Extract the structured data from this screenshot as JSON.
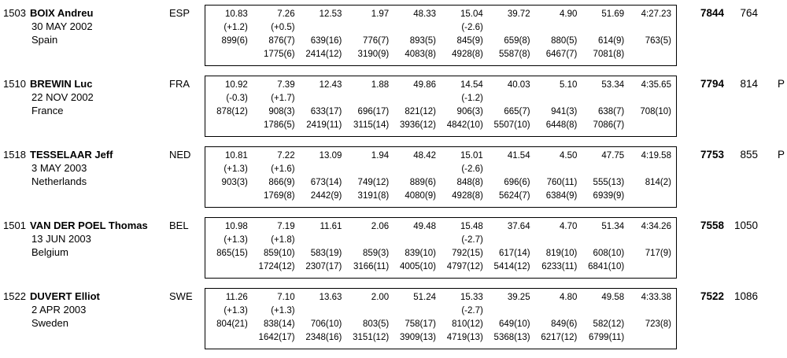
{
  "colors": {
    "background": "#ffffff",
    "text": "#000000",
    "box_border": "#000000"
  },
  "athletes": [
    {
      "bib": "1503",
      "name": "BOIX Andreu",
      "birthdate": "30 MAY 2002",
      "country": "Spain",
      "noc": "ESP",
      "marks": [
        "10.83",
        "7.26",
        "12.53",
        "1.97",
        "48.33",
        "15.04",
        "39.72",
        "4.90",
        "51.69",
        "4:27.23"
      ],
      "winds": [
        "(+1.2)",
        "(+0.5)",
        "",
        "",
        "",
        "(-2.6)",
        "",
        "",
        "",
        ""
      ],
      "points": [
        "899(6)",
        "876(7)",
        "639(16)",
        "776(7)",
        "893(5)",
        "845(9)",
        "659(8)",
        "880(5)",
        "614(9)",
        "763(5)"
      ],
      "cumulative": [
        "",
        "1775(6)",
        "2414(12)",
        "3190(9)",
        "4083(8)",
        "4928(8)",
        "5587(8)",
        "6467(7)",
        "7081(8)",
        ""
      ],
      "total": "7844",
      "secondary": "764",
      "flag": ""
    },
    {
      "bib": "1510",
      "name": "BREWIN Luc",
      "birthdate": "22 NOV 2002",
      "country": "France",
      "noc": "FRA",
      "marks": [
        "10.92",
        "7.39",
        "12.43",
        "1.88",
        "49.86",
        "14.54",
        "40.03",
        "5.10",
        "53.34",
        "4:35.65"
      ],
      "winds": [
        "(-0.3)",
        "(+1.7)",
        "",
        "",
        "",
        "(-1.2)",
        "",
        "",
        "",
        ""
      ],
      "points": [
        "878(12)",
        "908(3)",
        "633(17)",
        "696(17)",
        "821(12)",
        "906(3)",
        "665(7)",
        "941(3)",
        "638(7)",
        "708(10)"
      ],
      "cumulative": [
        "",
        "1786(5)",
        "2419(11)",
        "3115(14)",
        "3936(12)",
        "4842(10)",
        "5507(10)",
        "6448(8)",
        "7086(7)",
        ""
      ],
      "total": "7794",
      "secondary": "814",
      "flag": "P"
    },
    {
      "bib": "1518",
      "name": "TESSELAAR Jeff",
      "birthdate": "3 MAY 2003",
      "country": "Netherlands",
      "noc": "NED",
      "marks": [
        "10.81",
        "7.22",
        "13.09",
        "1.94",
        "48.42",
        "15.01",
        "41.54",
        "4.50",
        "47.75",
        "4:19.58"
      ],
      "winds": [
        "(+1.3)",
        "(+1.6)",
        "",
        "",
        "",
        "(-2.6)",
        "",
        "",
        "",
        ""
      ],
      "points": [
        "903(3)",
        "866(9)",
        "673(14)",
        "749(12)",
        "889(6)",
        "848(8)",
        "696(6)",
        "760(11)",
        "555(13)",
        "814(2)"
      ],
      "cumulative": [
        "",
        "1769(8)",
        "2442(9)",
        "3191(8)",
        "4080(9)",
        "4928(8)",
        "5624(7)",
        "6384(9)",
        "6939(9)",
        ""
      ],
      "total": "7753",
      "secondary": "855",
      "flag": "P"
    },
    {
      "bib": "1501",
      "name": "VAN DER POEL Thomas",
      "birthdate": "13 JUN 2003",
      "country": "Belgium",
      "noc": "BEL",
      "marks": [
        "10.98",
        "7.19",
        "11.61",
        "2.06",
        "49.48",
        "15.48",
        "37.64",
        "4.70",
        "51.34",
        "4:34.26"
      ],
      "winds": [
        "(+1.3)",
        "(+1.8)",
        "",
        "",
        "",
        "(-2.7)",
        "",
        "",
        "",
        ""
      ],
      "points": [
        "865(15)",
        "859(10)",
        "583(19)",
        "859(3)",
        "839(10)",
        "792(15)",
        "617(14)",
        "819(10)",
        "608(10)",
        "717(9)"
      ],
      "cumulative": [
        "",
        "1724(12)",
        "2307(17)",
        "3166(11)",
        "4005(10)",
        "4797(12)",
        "5414(12)",
        "6233(11)",
        "6841(10)",
        ""
      ],
      "total": "7558",
      "secondary": "1050",
      "flag": ""
    },
    {
      "bib": "1522",
      "name": "DUVERT Elliot",
      "birthdate": "2 APR 2003",
      "country": "Sweden",
      "noc": "SWE",
      "marks": [
        "11.26",
        "7.10",
        "13.63",
        "2.00",
        "51.24",
        "15.33",
        "39.25",
        "4.80",
        "49.58",
        "4:33.38"
      ],
      "winds": [
        "(+1.3)",
        "(+1.3)",
        "",
        "",
        "",
        "(-2.7)",
        "",
        "",
        "",
        ""
      ],
      "points": [
        "804(21)",
        "838(14)",
        "706(10)",
        "803(5)",
        "758(17)",
        "810(12)",
        "649(10)",
        "849(6)",
        "582(12)",
        "723(8)"
      ],
      "cumulative": [
        "",
        "1642(17)",
        "2348(16)",
        "3151(12)",
        "3909(13)",
        "4719(13)",
        "5368(13)",
        "6217(12)",
        "6799(11)",
        ""
      ],
      "total": "7522",
      "secondary": "1086",
      "flag": ""
    }
  ]
}
